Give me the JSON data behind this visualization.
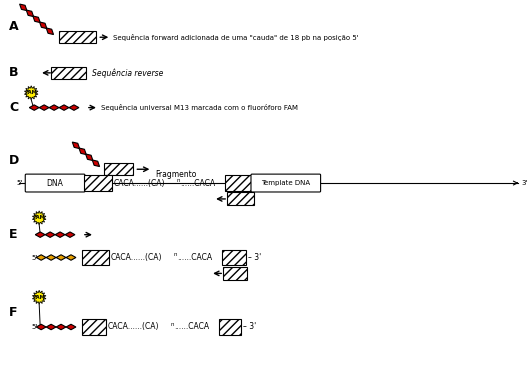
{
  "bg_color": "#ffffff",
  "label_A": "A",
  "label_B": "B",
  "label_C": "C",
  "label_D": "D",
  "label_E": "E",
  "label_F": "F",
  "text_A": "Sequência forward adicionada de uma \"cauda\" de 18 pb na posição 5'",
  "text_B": "Sequência reverse",
  "text_C": "Sequência universal M13 marcada com o fluoróforo FAM",
  "text_D_frag": "Fragmento",
  "text_D_dna": "DNA",
  "text_D_template": "Template DNA",
  "text_CACA": "CACA......(CA)",
  "text_CAn": "n",
  "text_CACA2": "......CACA",
  "text_5prime": "5'",
  "text_3prime": "3'",
  "red_color": "#cc0000",
  "orange_color": "#e8a000",
  "yellow_color": "#ffee00",
  "black": "#000000",
  "gray": "#888888"
}
